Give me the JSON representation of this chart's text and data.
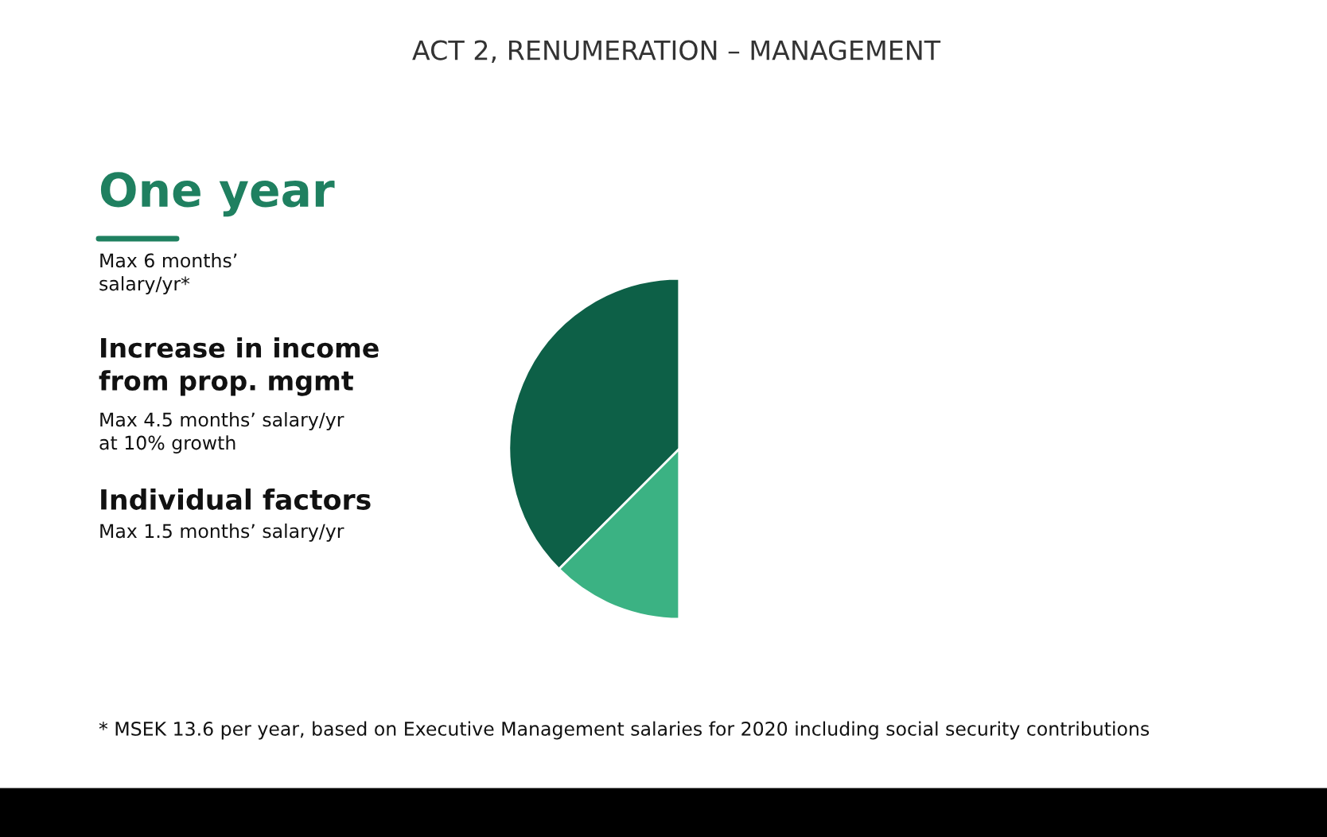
{
  "chart_data": {
    "type": "pie",
    "title": "ACT 2, RENUMERATION – MANAGEMENT",
    "subtitle": "One year",
    "categories": [
      null,
      null,
      null
    ],
    "values": [
      37.5,
      12.5,
      50
    ],
    "colors": [
      "#0d6047",
      "#3bb283",
      "#ffffff"
    ],
    "annotations": [
      "Max 6 months’\nsalary/yr*",
      "Increase in income\nfrom prop. mgmt",
      "Max 4.5 months’ salary/yr\nat 10% growth",
      "Individual factors",
      "Max 1.5 months’ salary/yr",
      "* MSEK 13.6 per year, based on Executive Management salaries for 2020 including social security contributions"
    ]
  }
}
